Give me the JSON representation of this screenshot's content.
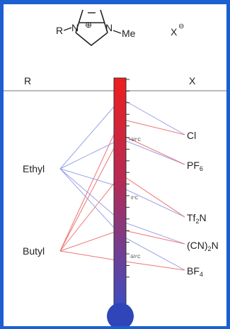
{
  "structure": {
    "substituent": "R",
    "methyl": "Me",
    "charge": "⊕",
    "anion": "X",
    "anion_charge": "⊖",
    "n1": "N",
    "n2": "N"
  },
  "headers": {
    "left": "R",
    "right": "X"
  },
  "cations": [
    {
      "name": "Ethyl"
    },
    {
      "name": "Butyl"
    }
  ],
  "anions": [
    {
      "base": "Cl",
      "sub": "",
      "tail": ""
    },
    {
      "base": "PF",
      "sub": "6",
      "tail": ""
    },
    {
      "base": "Tf",
      "sub": "2",
      "tail": "N"
    },
    {
      "base": "(CN)",
      "sub": "2",
      "tail": "N"
    },
    {
      "base": "BF",
      "sub": "4",
      "tail": ""
    }
  ],
  "temperature_scale": {
    "marks": [
      {
        "label": "+50°C",
        "value": 50
      },
      {
        "label": "0°C",
        "value": 0
      },
      {
        "label": "-50°C",
        "value": -50
      }
    ]
  },
  "colors": {
    "ethyl_links": "#9aa2e6",
    "butyl_links": "#ef7474",
    "thermo_hot": "#ee2020",
    "thermo_cold": "#3b4ec4",
    "frame": "#1b5fd1"
  }
}
